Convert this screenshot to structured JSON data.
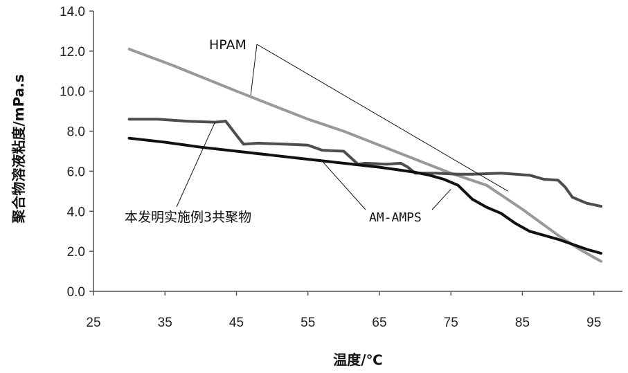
{
  "chart_data": {
    "type": "line",
    "xlabel": "温度/℃",
    "ylabel": "聚合物溶液粘度/mPa.s",
    "xlim": [
      25,
      99
    ],
    "ylim": [
      0,
      14
    ],
    "x_ticks": [
      "25",
      "35",
      "45",
      "55",
      "65",
      "75",
      "85",
      "95"
    ],
    "y_ticks": [
      "0.0",
      "2.0",
      "4.0",
      "6.0",
      "8.0",
      "10.0",
      "12.0",
      "14.0"
    ],
    "grid": false,
    "series": [
      {
        "name": "HPAM",
        "color": "#999999",
        "x": [
          30,
          36,
          45,
          50,
          55,
          60,
          65,
          70,
          75,
          80,
          85,
          90,
          93,
          96
        ],
        "y": [
          12.1,
          11.3,
          10.0,
          9.3,
          8.6,
          8.0,
          7.3,
          6.6,
          5.9,
          5.3,
          4.1,
          2.8,
          2.1,
          1.5
        ]
      },
      {
        "name": "本发明实施例3共聚物",
        "color": "#4d4d4d",
        "x": [
          30,
          34,
          38,
          42,
          43.5,
          45,
          46,
          48,
          52,
          55,
          57,
          60,
          62,
          63,
          66,
          68,
          69,
          70,
          73,
          76,
          78,
          82,
          86,
          88,
          90,
          91,
          92,
          94,
          96
        ],
        "y": [
          8.6,
          8.6,
          8.5,
          8.45,
          8.5,
          7.8,
          7.35,
          7.4,
          7.35,
          7.3,
          7.05,
          7.0,
          6.35,
          6.4,
          6.35,
          6.4,
          6.2,
          5.9,
          5.9,
          5.85,
          5.85,
          5.9,
          5.8,
          5.6,
          5.55,
          5.2,
          4.7,
          4.4,
          4.25
        ]
      },
      {
        "name": "AM-AMPS",
        "color": "#111111",
        "x": [
          30,
          35,
          40,
          45,
          50,
          55,
          60,
          65,
          68,
          70,
          72,
          74,
          76,
          78,
          80,
          82,
          84,
          86,
          90,
          94,
          96
        ],
        "y": [
          7.65,
          7.45,
          7.2,
          7.0,
          6.8,
          6.6,
          6.4,
          6.2,
          6.05,
          5.95,
          5.8,
          5.6,
          5.3,
          4.6,
          4.2,
          3.9,
          3.4,
          3.0,
          2.6,
          2.1,
          1.9
        ]
      }
    ],
    "annotations": [
      {
        "label": "HPAM",
        "series": "HPAM",
        "pointer_x": [
          47,
          83
        ],
        "pointer_y": [
          9.8,
          5.0
        ]
      },
      {
        "label": "本发明实施例3共聚物",
        "series": "本发明实施例3共聚物",
        "pointer_x": [
          42
        ],
        "pointer_y": [
          8.45
        ]
      },
      {
        "label": "AM-AMPS",
        "series": "AM-AMPS",
        "pointer_x": [
          57,
          75
        ],
        "pointer_y": [
          6.5,
          5.1
        ]
      }
    ]
  }
}
